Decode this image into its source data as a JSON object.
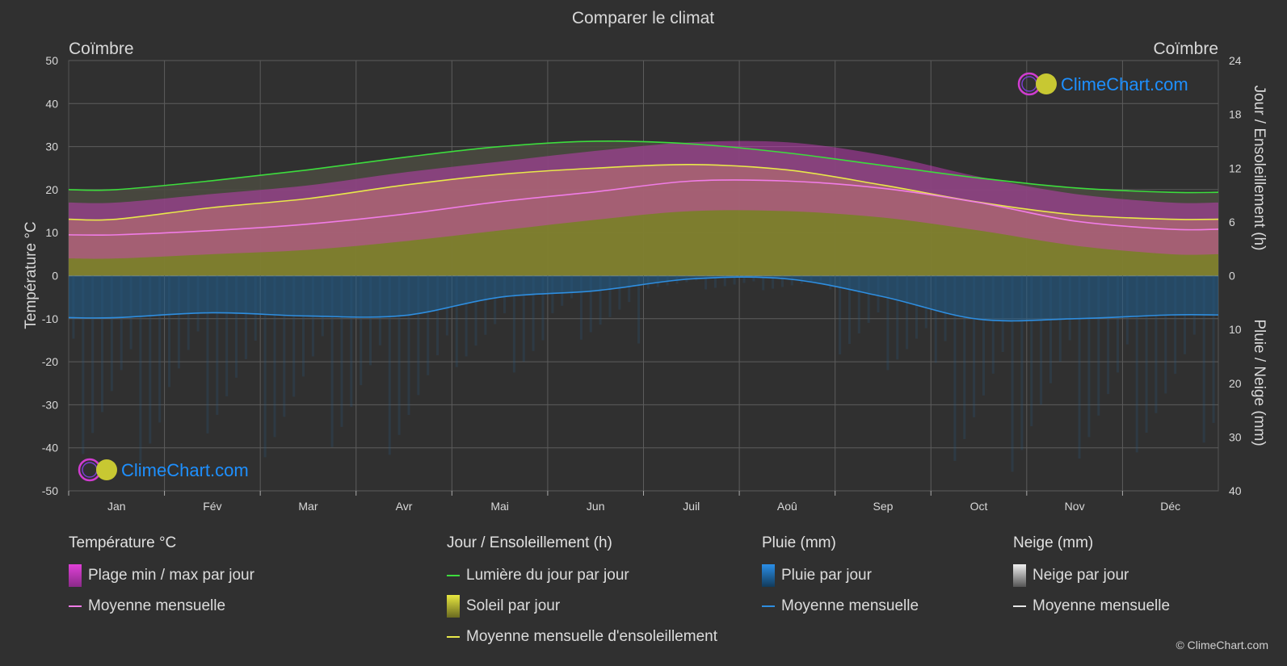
{
  "title": "Comparer le climat",
  "location_left": "Coïmbre",
  "location_right": "Coïmbre",
  "left_axis_label": "Température °C",
  "right_axis_label_top": "Jour / Ensoleillement (h)",
  "right_axis_label_bottom": "Pluie / Neige (mm)",
  "logo_text": "ClimeChart.com",
  "copyright": "© ClimeChart.com",
  "colors": {
    "background": "#303030",
    "daylight": "#3ddc3d",
    "sunshine_line": "#e8e84a",
    "temp_line": "#f07ce6",
    "rain_line": "#2e8ee0",
    "temp_range": "#d43cc8",
    "sunshine_fill": "#8f8f2a",
    "rain_fill": "#1f5f8f",
    "logo": "#1e90ff"
  },
  "chart_data": {
    "type": "line",
    "categories": [
      "Jan",
      "Fév",
      "Mar",
      "Avr",
      "Mai",
      "Jun",
      "Juil",
      "Aoû",
      "Sep",
      "Oct",
      "Nov",
      "Déc"
    ],
    "left_axis": {
      "label": "Température °C",
      "ticks": [
        50,
        40,
        30,
        20,
        10,
        0,
        -10,
        -20,
        -30,
        -40,
        -50
      ],
      "range": [
        -50,
        50
      ]
    },
    "right_axis_top": {
      "label": "Jour / Ensoleillement (h)",
      "ticks": [
        24,
        18,
        12,
        6,
        0
      ],
      "range": [
        0,
        24
      ]
    },
    "right_axis_bottom": {
      "label": "Pluie / Neige (mm)",
      "ticks": [
        0,
        10,
        20,
        30,
        40
      ],
      "range": [
        0,
        40
      ]
    },
    "series": [
      {
        "name": "Lumière du jour par jour",
        "unit": "h",
        "values": [
          9.6,
          10.6,
          11.8,
          13.2,
          14.4,
          15.0,
          14.7,
          13.7,
          12.3,
          10.9,
          9.8,
          9.3
        ]
      },
      {
        "name": "Moyenne mensuelle d'ensoleillement",
        "unit": "h",
        "values": [
          6.3,
          7.6,
          8.6,
          10.1,
          11.3,
          12.0,
          12.4,
          11.8,
          10.1,
          8.2,
          6.8,
          6.3
        ]
      },
      {
        "name": "Moyenne mensuelle",
        "unit": "°C",
        "values": [
          9.5,
          10.5,
          12.0,
          14.3,
          17.2,
          19.5,
          22.0,
          22.0,
          20.3,
          17.0,
          12.7,
          10.8
        ]
      },
      {
        "name": "Plage min / max par jour (max)",
        "unit": "°C",
        "values": [
          17.0,
          19.0,
          21.0,
          24.0,
          26.5,
          29.0,
          31.0,
          31.0,
          28.0,
          23.0,
          19.0,
          17.0
        ]
      },
      {
        "name": "Plage min / max par jour (min)",
        "unit": "°C",
        "values": [
          4.0,
          5.0,
          6.0,
          8.0,
          10.5,
          13.0,
          15.0,
          15.0,
          13.5,
          10.5,
          7.0,
          5.0
        ]
      },
      {
        "name": "Moyenne mensuelle pluie",
        "unit": "mm",
        "values": [
          7.8,
          6.9,
          7.5,
          7.4,
          4.0,
          2.8,
          0.6,
          0.6,
          3.9,
          8.1,
          8.0,
          7.3
        ]
      }
    ]
  },
  "legend": {
    "temperature": {
      "title": "Température °C",
      "items": [
        "Plage min / max par jour",
        "Moyenne mensuelle"
      ]
    },
    "sun": {
      "title": "Jour / Ensoleillement (h)",
      "items": [
        "Lumière du jour par jour",
        "Soleil par jour",
        "Moyenne mensuelle d'ensoleillement"
      ]
    },
    "rain": {
      "title": "Pluie (mm)",
      "items": [
        "Pluie par jour",
        "Moyenne mensuelle"
      ]
    },
    "snow": {
      "title": "Neige (mm)",
      "items": [
        "Neige par jour",
        "Moyenne mensuelle"
      ]
    }
  }
}
